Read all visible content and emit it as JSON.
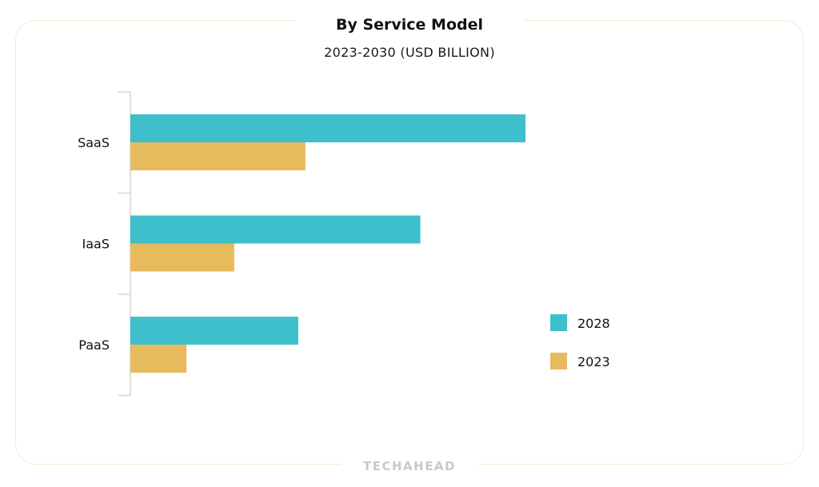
{
  "chart_data": {
    "type": "bar",
    "orientation": "horizontal",
    "title": "By Service Model",
    "subtitle": "2023-2030 (USD BILLION)",
    "categories": [
      "SaaS",
      "IaaS",
      "PaaS"
    ],
    "series": [
      {
        "name": "2028",
        "color": "#3ec0cc",
        "values": [
          100,
          73.4,
          42.5
        ]
      },
      {
        "name": "2023",
        "color": "#e8ba5e",
        "values": [
          44.3,
          26.3,
          14.2
        ]
      }
    ],
    "xlim": [
      0,
      100
    ],
    "grid": false,
    "legend_position": "right",
    "xaxis_visible": false
  },
  "brand": "TECHAHEAD"
}
